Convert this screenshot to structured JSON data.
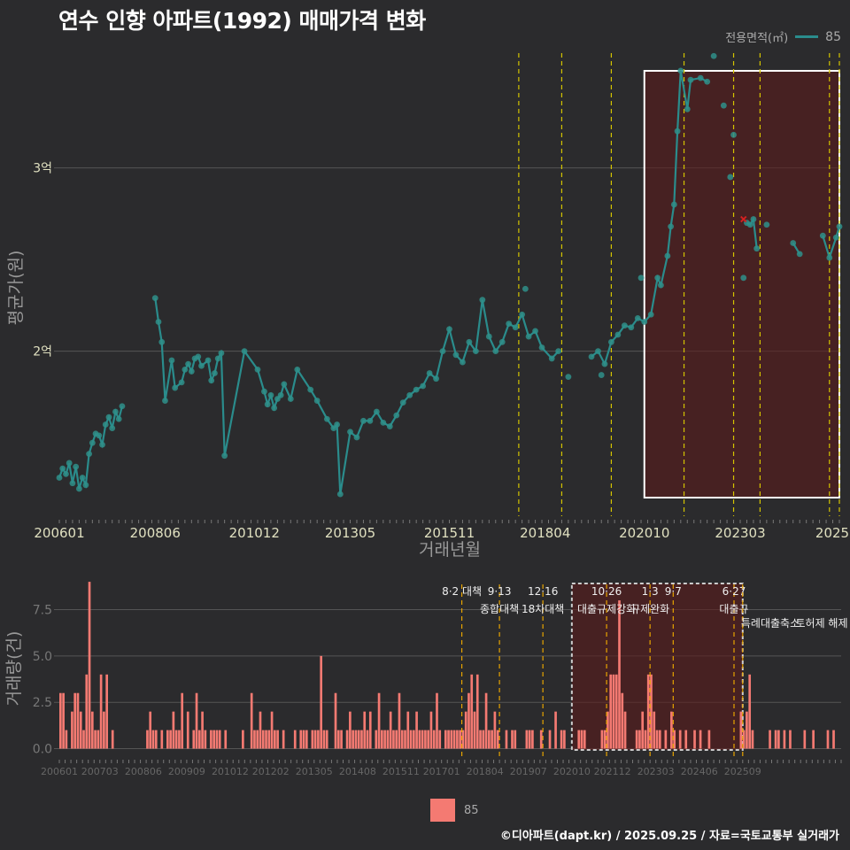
{
  "title": "연수 인향 아파트(1992) 매매가격 변화",
  "legend": {
    "title": "전용면적(㎡)",
    "series_label": "85"
  },
  "credit": "©디아파트(dapt.kr) / 2025.09.25 / 자료=국토교통부 실거래가",
  "colors": {
    "line": "#2a8c8c",
    "point": "#2f8f8a",
    "bar": "#f47a72",
    "policy_line": "#d4c400",
    "highlight": "#5a1a1a",
    "background": "#2b2b2d",
    "grid": "#555555"
  },
  "chart_data": [
    {
      "type": "line",
      "name": "price",
      "xlabel": "거래년월",
      "ylabel": "평균가(원)",
      "x_tick_labels": [
        "200601",
        "200806",
        "201012",
        "201305",
        "201511",
        "201804",
        "202010",
        "202303",
        "2025"
      ],
      "y_tick_labels": [
        "2억",
        "3억"
      ],
      "y_ticks": [
        200000000,
        300000000
      ],
      "xlim": [
        "2006-01",
        "2025-09"
      ],
      "ylim": [
        110000000,
        365000000
      ],
      "highlight_period": [
        "2020-10",
        "2025-09"
      ],
      "series": [
        {
          "name": "85",
          "points": [
            [
              "2006-01",
              131000000
            ],
            [
              "2006-02",
              136000000
            ],
            [
              "2006-03",
              133000000
            ],
            [
              "2006-04",
              139000000
            ],
            [
              "2006-05",
              128000000
            ],
            [
              "2006-06",
              137000000
            ],
            [
              "2006-07",
              125000000
            ],
            [
              "2006-08",
              131000000
            ],
            [
              "2006-09",
              127000000
            ],
            [
              "2006-10",
              144000000
            ],
            [
              "2006-11",
              150000000
            ],
            [
              "2006-12",
              155000000
            ],
            [
              "2007-01",
              154000000
            ],
            [
              "2007-02",
              149000000
            ],
            [
              "2007-03",
              160000000
            ],
            [
              "2007-04",
              164000000
            ],
            [
              "2007-05",
              158000000
            ],
            [
              "2007-06",
              167000000
            ],
            [
              "2007-07",
              163000000
            ],
            [
              "2007-08",
              170000000
            ],
            [
              "2008-06",
              229000000
            ],
            [
              "2008-07",
              216000000
            ],
            [
              "2008-08",
              205000000
            ],
            [
              "2008-09",
              173000000
            ],
            [
              "2008-11",
              195000000
            ],
            [
              "2008-12",
              180000000
            ],
            [
              "2009-02",
              183000000
            ],
            [
              "2009-03",
              190000000
            ],
            [
              "2009-04",
              193000000
            ],
            [
              "2009-05",
              189000000
            ],
            [
              "2009-06",
              196000000
            ],
            [
              "2009-07",
              197000000
            ],
            [
              "2009-08",
              192000000
            ],
            [
              "2009-10",
              195000000
            ],
            [
              "2009-11",
              184000000
            ],
            [
              "2009-12",
              188000000
            ],
            [
              "2010-01",
              196000000
            ],
            [
              "2010-02",
              199000000
            ],
            [
              "2010-03",
              143000000
            ],
            [
              "2010-09",
              200000000
            ],
            [
              "2011-01",
              190000000
            ],
            [
              "2011-03",
              178000000
            ],
            [
              "2011-04",
              171000000
            ],
            [
              "2011-05",
              176000000
            ],
            [
              "2011-06",
              169000000
            ],
            [
              "2011-07",
              174000000
            ],
            [
              "2011-08",
              176000000
            ],
            [
              "2011-09",
              182000000
            ],
            [
              "2011-11",
              174000000
            ],
            [
              "2012-01",
              190000000
            ],
            [
              "2012-05",
              179000000
            ],
            [
              "2012-07",
              173000000
            ],
            [
              "2012-10",
              163000000
            ],
            [
              "2012-12",
              158000000
            ],
            [
              "2013-01",
              160000000
            ],
            [
              "2013-02",
              122000000
            ],
            [
              "2013-05",
              156000000
            ],
            [
              "2013-07",
              153000000
            ],
            [
              "2013-09",
              162000000
            ],
            [
              "2013-11",
              162000000
            ],
            [
              "2014-01",
              167000000
            ],
            [
              "2014-03",
              161000000
            ],
            [
              "2014-05",
              159000000
            ],
            [
              "2014-07",
              165000000
            ],
            [
              "2014-09",
              172000000
            ],
            [
              "2014-11",
              176000000
            ],
            [
              "2015-01",
              179000000
            ],
            [
              "2015-03",
              181000000
            ],
            [
              "2015-05",
              188000000
            ],
            [
              "2015-07",
              185000000
            ],
            [
              "2015-09",
              200000000
            ],
            [
              "2015-11",
              212000000
            ],
            [
              "2016-01",
              198000000
            ],
            [
              "2016-03",
              194000000
            ],
            [
              "2016-05",
              205000000
            ],
            [
              "2016-07",
              200000000
            ],
            [
              "2016-09",
              228000000
            ],
            [
              "2016-11",
              208000000
            ],
            [
              "2017-01",
              200000000
            ],
            [
              "2017-03",
              205000000
            ],
            [
              "2017-05",
              215000000
            ],
            [
              "2017-07",
              213000000
            ],
            [
              "2017-09",
              220000000
            ],
            [
              "2017-11",
              208000000
            ],
            [
              "2018-01",
              211000000
            ],
            [
              "2018-03",
              202000000
            ],
            [
              "2018-06",
              196000000
            ],
            [
              "2018-08",
              200000000
            ],
            [
              "2019-06",
              197000000
            ],
            [
              "2019-08",
              200000000
            ],
            [
              "2019-10",
              193000000
            ],
            [
              "2019-12",
              205000000
            ],
            [
              "2020-02",
              209000000
            ],
            [
              "2020-04",
              214000000
            ],
            [
              "2020-06",
              213000000
            ],
            [
              "2020-08",
              218000000
            ],
            [
              "2020-10",
              216000000
            ],
            [
              "2020-12",
              220000000
            ],
            [
              "2021-02",
              240000000
            ],
            [
              "2021-03",
              236000000
            ],
            [
              "2021-05",
              252000000
            ],
            [
              "2021-06",
              268000000
            ],
            [
              "2021-07",
              280000000
            ],
            [
              "2021-08",
              320000000
            ],
            [
              "2021-09",
              353000000
            ],
            [
              "2021-11",
              332000000
            ],
            [
              "2021-12",
              348000000
            ],
            [
              "2022-03",
              349000000
            ],
            [
              "2022-05",
              347000000
            ],
            [
              "2023-05",
              270000000
            ],
            [
              "2023-06",
              269000000
            ],
            [
              "2023-07",
              272000000
            ],
            [
              "2023-08",
              256000000
            ],
            [
              "2024-07",
              259000000
            ],
            [
              "2024-09",
              253000000
            ],
            [
              "2025-04",
              263000000
            ],
            [
              "2025-06",
              251000000
            ],
            [
              "2025-08",
              262000000
            ],
            [
              "2025-09",
              268000000
            ]
          ],
          "extra_points": [
            [
              "2022-07",
              361000000
            ],
            [
              "2022-10",
              334000000
            ],
            [
              "2023-01",
              318000000
            ],
            [
              "2022-12",
              295000000
            ],
            [
              "2023-11",
              269000000
            ],
            [
              "2023-04",
              240000000
            ],
            [
              "2019-09",
              187000000
            ],
            [
              "2018-11",
              186000000
            ],
            [
              "2020-09",
              240000000
            ],
            [
              "2017-10",
              234000000
            ]
          ]
        }
      ]
    },
    {
      "type": "bar",
      "name": "volume",
      "xlabel": "",
      "ylabel": "거래량(건)",
      "x_tick_labels": [
        "200601",
        "200703",
        "200806",
        "200909",
        "201012",
        "201202",
        "201305",
        "201408",
        "201511",
        "201701",
        "201804",
        "201907",
        "202010",
        "202112",
        "202303",
        "202406",
        "202509"
      ],
      "y_tick_labels": [
        "0.0",
        "2.5",
        "5.0",
        "7.5"
      ],
      "y_ticks": [
        0,
        2.5,
        5.0,
        7.5
      ],
      "ylim": [
        -0.5,
        9.1
      ],
      "series": [
        {
          "name": "85",
          "start": "2006-01",
          "values": [
            3,
            3,
            1,
            0,
            2,
            3,
            3,
            2,
            1,
            4,
            9,
            2,
            1,
            1,
            4,
            2,
            4,
            0,
            1,
            0,
            0,
            0,
            0,
            0,
            0,
            0,
            0,
            0,
            0,
            0,
            1,
            2,
            1,
            1,
            0,
            1,
            0,
            1,
            1,
            2,
            1,
            1,
            3,
            0,
            2,
            0,
            1,
            3,
            1,
            2,
            1,
            0,
            1,
            1,
            1,
            1,
            0,
            1,
            0,
            0,
            0,
            0,
            0,
            1,
            0,
            0,
            3,
            1,
            1,
            2,
            1,
            1,
            1,
            2,
            1,
            1,
            0,
            1,
            0,
            0,
            0,
            1,
            0,
            1,
            1,
            1,
            0,
            1,
            1,
            1,
            5,
            1,
            1,
            0,
            0,
            3,
            1,
            1,
            0,
            1,
            2,
            1,
            1,
            1,
            1,
            2,
            1,
            2,
            0,
            1,
            3,
            1,
            1,
            1,
            2,
            1,
            1,
            3,
            1,
            1,
            2,
            1,
            1,
            2,
            1,
            1,
            1,
            1,
            2,
            1,
            3,
            1,
            0,
            1,
            1,
            1,
            1,
            1,
            1,
            1,
            2,
            3,
            4,
            2,
            4,
            1,
            1,
            3,
            1,
            1,
            2,
            1,
            0,
            0,
            1,
            0,
            1,
            1,
            0,
            0,
            0,
            1,
            1,
            1,
            0,
            0,
            1,
            0,
            0,
            1,
            0,
            2,
            0,
            1,
            1,
            0,
            0,
            0,
            0,
            1,
            1,
            1,
            0,
            0,
            0,
            0,
            0,
            1,
            1,
            2,
            4,
            4,
            4,
            8,
            3,
            2,
            0,
            0,
            0,
            1,
            1,
            2,
            1,
            4,
            4,
            2,
            1,
            1,
            0,
            1,
            0,
            2,
            1,
            0,
            1,
            0,
            1,
            0,
            0,
            1,
            0,
            1,
            0,
            0,
            1,
            0,
            0,
            0,
            0,
            0,
            0,
            0,
            0,
            0,
            0,
            2,
            1,
            2,
            4,
            1,
            0,
            0,
            0,
            0,
            0,
            1,
            0,
            1,
            1,
            0,
            1,
            0,
            1,
            0,
            0,
            0,
            0,
            1,
            0,
            0,
            1,
            0,
            0,
            0,
            0,
            1,
            0,
            1,
            0,
            0
          ]
        }
      ],
      "policy_events": [
        {
          "date": "2017-08",
          "label_top": "8·2 대책",
          "label_bottom": ""
        },
        {
          "date": "2018-09",
          "label_top": "9·13",
          "label_bottom": "종합대책"
        },
        {
          "date": "2019-12",
          "label_top": "12·16",
          "label_bottom": "18차대책"
        },
        {
          "date": "2021-10",
          "label_top": "10·26",
          "label_bottom": "대출규제강화"
        },
        {
          "date": "2023-01",
          "label_top": "1·3",
          "label_bottom": "규제완화"
        },
        {
          "date": "2023-09",
          "label_top": "9·7",
          "label_bottom": ""
        },
        {
          "date": "2025-06",
          "label_top": "6·27",
          "label_bottom": "대출규"
        },
        {
          "date": "2025-09",
          "label_top": "",
          "label_bottom": ""
        }
      ],
      "extra_labels": [
        "특례대출축소",
        "토허제 해제"
      ]
    }
  ]
}
